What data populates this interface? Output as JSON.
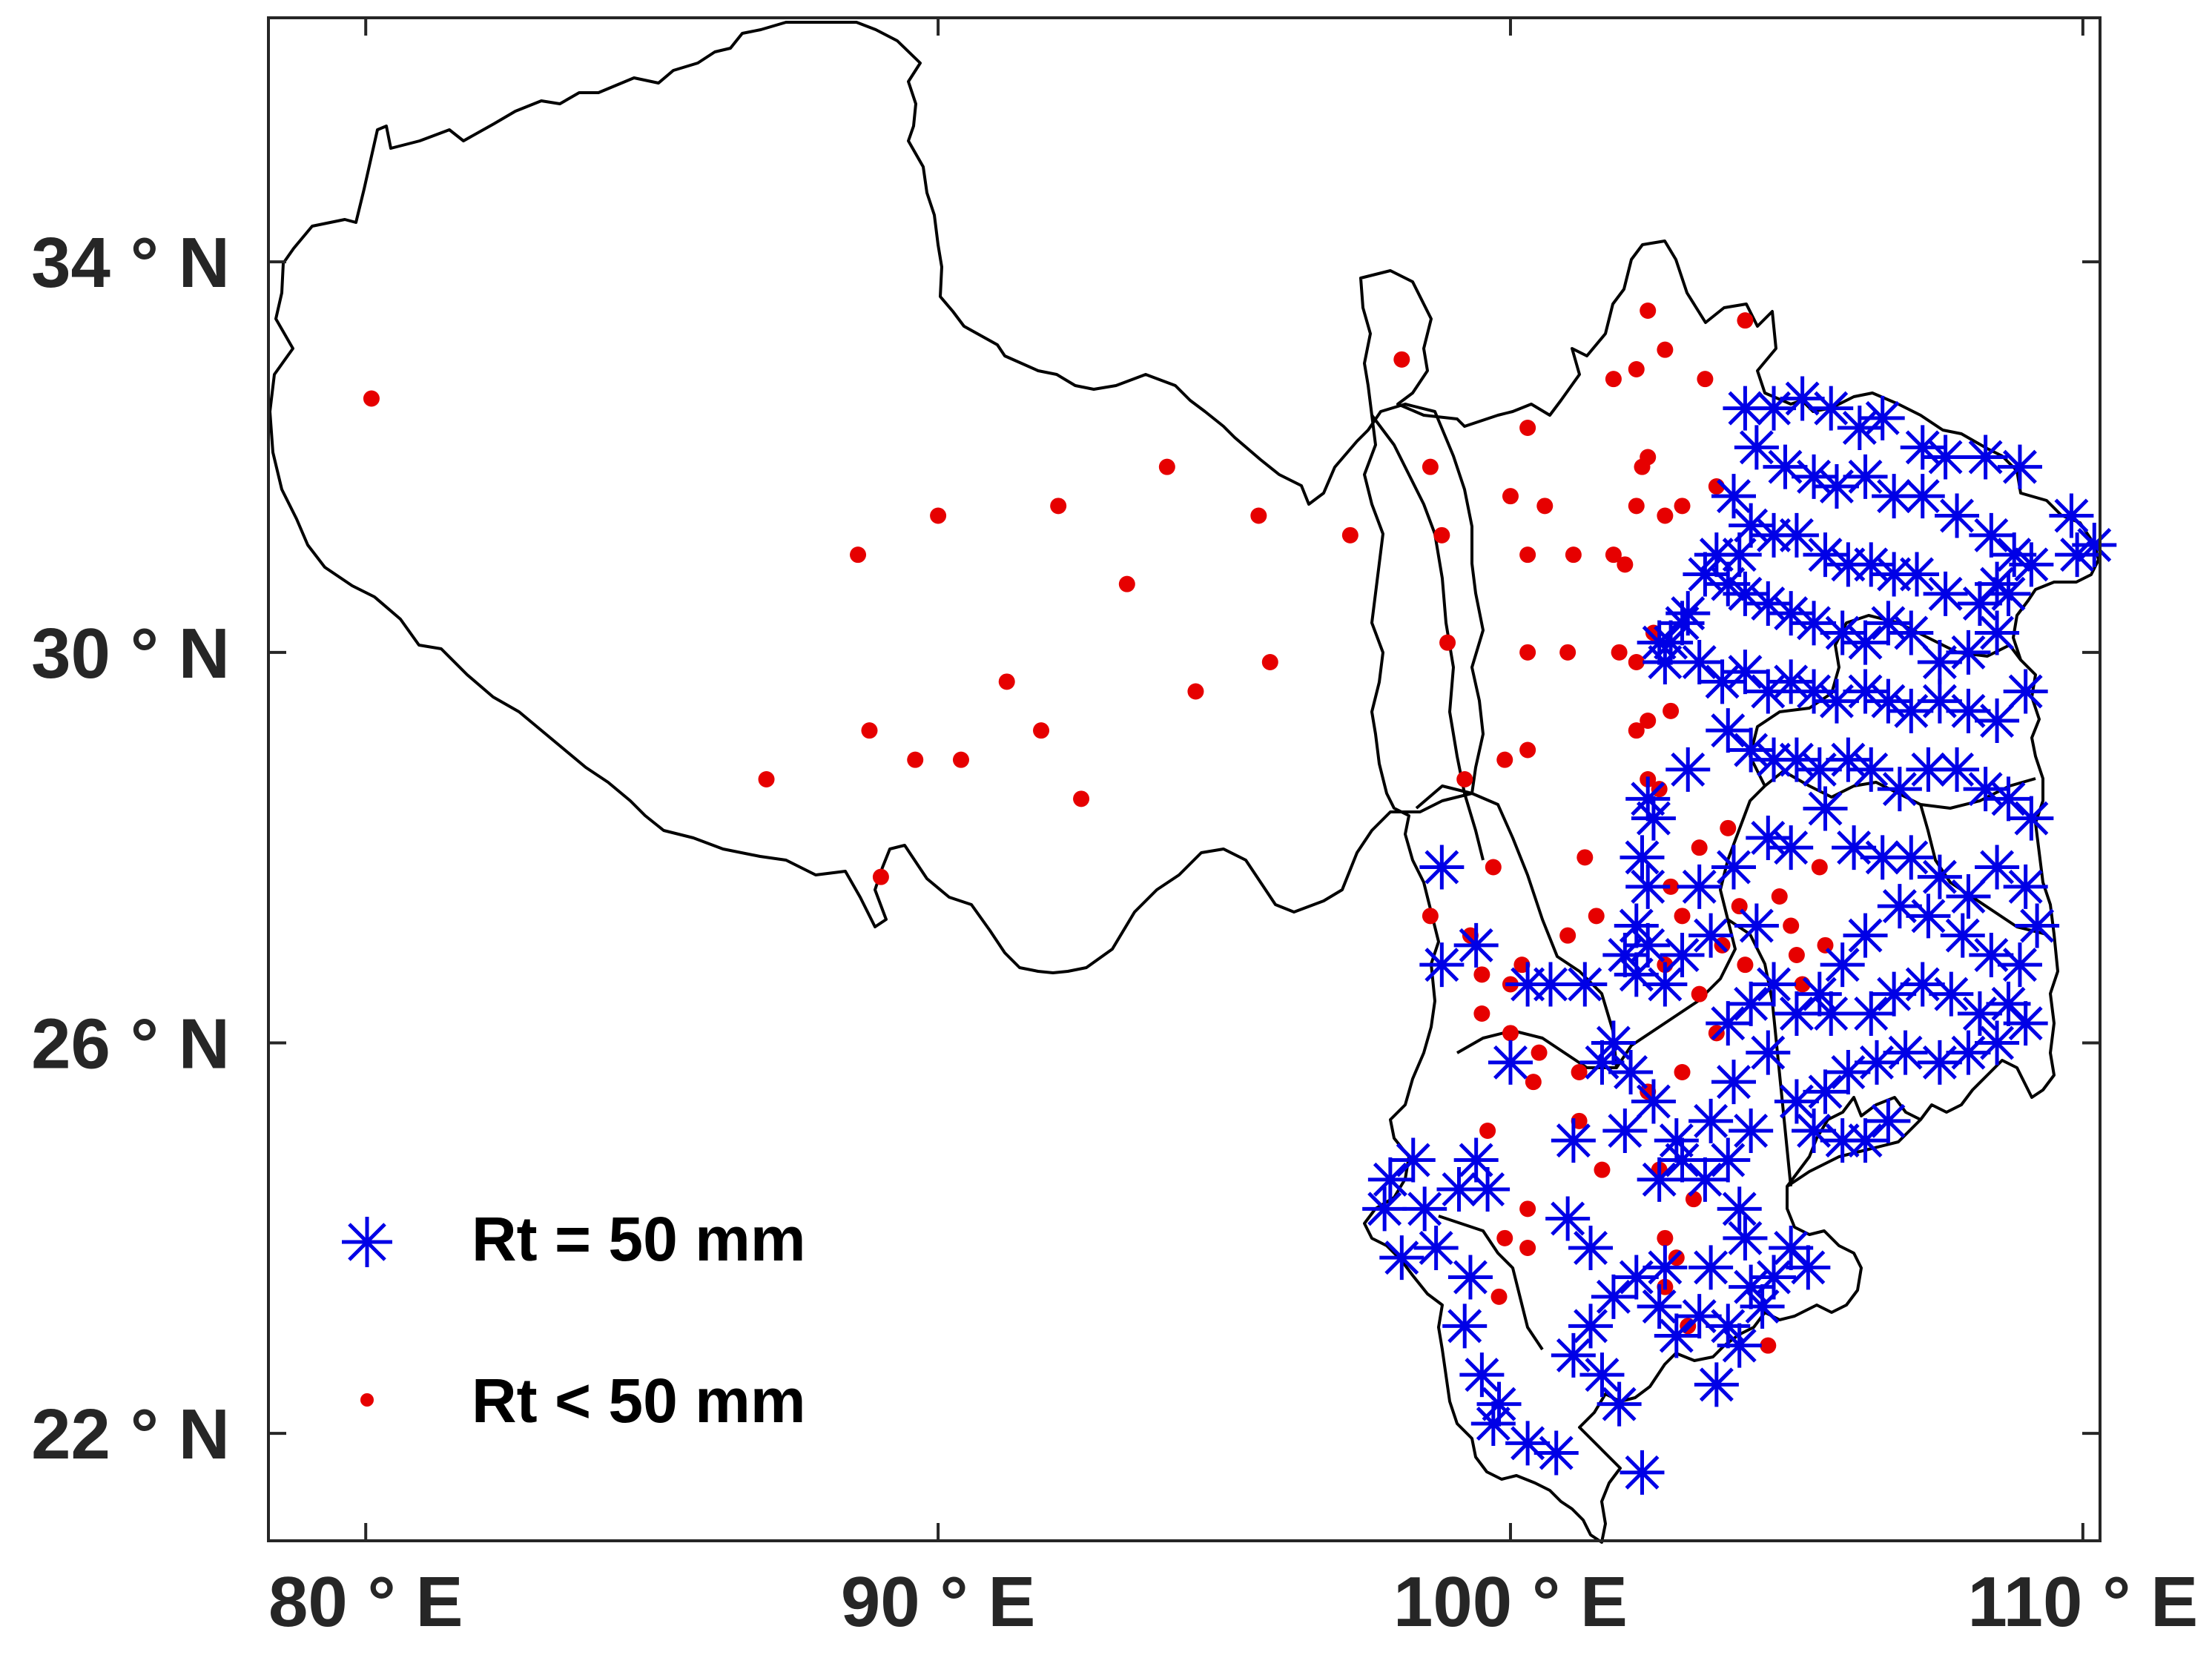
{
  "map": {
    "x_axis": {
      "range_deg_e": [
        78.3,
        110.3
      ],
      "ticks": [
        {
          "value": 80,
          "label": "80 ° E"
        },
        {
          "value": 90,
          "label": "90 ° E"
        },
        {
          "value": 100,
          "label": "100 ° E"
        },
        {
          "value": 110,
          "label": "110 ° E"
        }
      ]
    },
    "y_axis": {
      "range_deg_n": [
        20.9,
        36.5
      ],
      "ticks": [
        {
          "value": 22,
          "label": "22 ° N"
        },
        {
          "value": 26,
          "label": "26 ° N"
        },
        {
          "value": 30,
          "label": "30 ° N"
        },
        {
          "value": 34,
          "label": "34 ° N"
        }
      ]
    },
    "legend": {
      "placement": "lower-left",
      "items": [
        {
          "marker": "asterisk",
          "color": "#0000e6",
          "label": "Rt = 50 mm"
        },
        {
          "marker": "dot",
          "color": "#e60000",
          "label": "Rt < 50 mm"
        }
      ]
    },
    "colors": {
      "outline": "#000000",
      "asterisk": "#0000e6",
      "dot": "#e60000",
      "axis": "#262626"
    },
    "stations_lt50": [
      [
        80.1,
        32.6
      ],
      [
        88.6,
        31.0
      ],
      [
        90.0,
        31.4
      ],
      [
        92.1,
        31.5
      ],
      [
        94.0,
        31.9
      ],
      [
        95.6,
        31.4
      ],
      [
        97.2,
        31.2
      ],
      [
        93.3,
        30.7
      ],
      [
        95.8,
        29.9
      ],
      [
        94.5,
        29.6
      ],
      [
        91.2,
        29.7
      ],
      [
        91.8,
        29.2
      ],
      [
        88.8,
        29.2
      ],
      [
        89.6,
        28.9
      ],
      [
        90.4,
        28.9
      ],
      [
        92.5,
        28.5
      ],
      [
        87.0,
        28.7
      ],
      [
        89.0,
        27.7
      ],
      [
        98.1,
        33.0
      ],
      [
        98.6,
        31.9
      ],
      [
        98.8,
        31.2
      ],
      [
        98.9,
        30.1
      ],
      [
        99.2,
        28.7
      ],
      [
        99.7,
        27.8
      ],
      [
        99.3,
        27.1
      ],
      [
        99.5,
        26.7
      ],
      [
        99.5,
        26.3
      ],
      [
        98.6,
        27.3
      ],
      [
        100.0,
        31.6
      ],
      [
        100.3,
        31.0
      ],
      [
        100.3,
        30.0
      ],
      [
        100.3,
        29.0
      ],
      [
        99.9,
        28.9
      ],
      [
        100.3,
        32.3
      ],
      [
        100.6,
        31.5
      ],
      [
        101.1,
        31.0
      ],
      [
        101.0,
        30.0
      ],
      [
        101.3,
        27.9
      ],
      [
        101.5,
        27.3
      ],
      [
        101.0,
        27.1
      ],
      [
        100.0,
        26.6
      ],
      [
        100.2,
        26.8
      ],
      [
        100.5,
        25.9
      ],
      [
        100.4,
        25.6
      ],
      [
        101.2,
        25.7
      ],
      [
        101.6,
        24.7
      ],
      [
        100.3,
        24.3
      ],
      [
        99.9,
        24.0
      ],
      [
        100.3,
        23.9
      ],
      [
        99.8,
        23.4
      ],
      [
        99.6,
        25.1
      ],
      [
        100.0,
        26.1
      ],
      [
        101.2,
        25.2
      ],
      [
        101.8,
        32.8
      ],
      [
        102.2,
        32.9
      ],
      [
        102.4,
        33.5
      ],
      [
        102.7,
        33.1
      ],
      [
        103.4,
        32.8
      ],
      [
        104.1,
        33.4
      ],
      [
        102.3,
        31.9
      ],
      [
        102.2,
        31.5
      ],
      [
        101.8,
        31.0
      ],
      [
        102.0,
        30.9
      ],
      [
        102.4,
        32.0
      ],
      [
        102.7,
        31.4
      ],
      [
        103.0,
        31.5
      ],
      [
        103.6,
        31.7
      ],
      [
        102.5,
        30.2
      ],
      [
        102.2,
        29.9
      ],
      [
        101.9,
        30.0
      ],
      [
        102.2,
        29.2
      ],
      [
        102.4,
        29.3
      ],
      [
        102.8,
        29.4
      ],
      [
        102.4,
        28.7
      ],
      [
        102.6,
        28.6
      ],
      [
        103.3,
        28.0
      ],
      [
        102.8,
        27.6
      ],
      [
        103.0,
        27.3
      ],
      [
        103.7,
        27.0
      ],
      [
        102.7,
        26.8
      ],
      [
        103.3,
        26.5
      ],
      [
        103.6,
        26.1
      ],
      [
        103.0,
        25.7
      ],
      [
        102.4,
        25.5
      ],
      [
        102.6,
        24.7
      ],
      [
        103.2,
        24.4
      ],
      [
        102.7,
        24.0
      ],
      [
        102.9,
        23.8
      ],
      [
        102.7,
        23.5
      ],
      [
        103.1,
        23.1
      ],
      [
        104.5,
        22.9
      ],
      [
        104.7,
        27.5
      ],
      [
        104.9,
        27.2
      ],
      [
        105.0,
        26.9
      ],
      [
        105.5,
        27.0
      ],
      [
        105.1,
        26.6
      ],
      [
        105.4,
        27.8
      ],
      [
        104.1,
        26.8
      ],
      [
        104.0,
        27.4
      ],
      [
        103.8,
        28.2
      ]
    ],
    "stations_eq50": [
      [
        104.1,
        32.5
      ],
      [
        104.6,
        32.5
      ],
      [
        105.1,
        32.6
      ],
      [
        105.6,
        32.5
      ],
      [
        106.1,
        32.3
      ],
      [
        106.5,
        32.4
      ],
      [
        107.2,
        32.1
      ],
      [
        107.6,
        32.0
      ],
      [
        108.3,
        32.0
      ],
      [
        108.9,
        31.9
      ],
      [
        109.8,
        31.4
      ],
      [
        110.2,
        31.1
      ],
      [
        109.9,
        31.0
      ],
      [
        104.3,
        32.1
      ],
      [
        104.8,
        31.9
      ],
      [
        105.3,
        31.8
      ],
      [
        105.7,
        31.7
      ],
      [
        106.2,
        31.8
      ],
      [
        106.7,
        31.6
      ],
      [
        107.2,
        31.6
      ],
      [
        107.8,
        31.4
      ],
      [
        108.4,
        31.2
      ],
      [
        108.8,
        31.0
      ],
      [
        108.5,
        30.7
      ],
      [
        109.1,
        30.9
      ],
      [
        103.9,
        31.6
      ],
      [
        104.2,
        31.3
      ],
      [
        104.6,
        31.2
      ],
      [
        105.0,
        31.2
      ],
      [
        105.5,
        31.0
      ],
      [
        105.9,
        30.9
      ],
      [
        106.3,
        30.9
      ],
      [
        106.7,
        30.8
      ],
      [
        107.1,
        30.8
      ],
      [
        107.6,
        30.6
      ],
      [
        108.2,
        30.5
      ],
      [
        108.7,
        30.6
      ],
      [
        103.4,
        30.8
      ],
      [
        103.8,
        30.7
      ],
      [
        104.1,
        30.6
      ],
      [
        104.5,
        30.5
      ],
      [
        104.9,
        30.4
      ],
      [
        105.3,
        30.3
      ],
      [
        105.8,
        30.2
      ],
      [
        106.2,
        30.1
      ],
      [
        106.6,
        30.3
      ],
      [
        107.0,
        30.2
      ],
      [
        107.5,
        29.9
      ],
      [
        108.0,
        30.0
      ],
      [
        108.5,
        30.2
      ],
      [
        103.0,
        30.3
      ],
      [
        102.6,
        30.1
      ],
      [
        103.3,
        29.9
      ],
      [
        103.7,
        29.7
      ],
      [
        104.1,
        29.8
      ],
      [
        104.5,
        29.6
      ],
      [
        104.9,
        29.7
      ],
      [
        105.3,
        29.6
      ],
      [
        105.7,
        29.5
      ],
      [
        106.2,
        29.6
      ],
      [
        106.6,
        29.5
      ],
      [
        107.0,
        29.4
      ],
      [
        107.5,
        29.5
      ],
      [
        108.0,
        29.4
      ],
      [
        108.5,
        29.3
      ],
      [
        109.0,
        29.6
      ],
      [
        103.8,
        29.2
      ],
      [
        104.2,
        29.0
      ],
      [
        104.6,
        28.9
      ],
      [
        105.0,
        28.9
      ],
      [
        105.4,
        28.8
      ],
      [
        105.9,
        28.9
      ],
      [
        106.3,
        28.8
      ],
      [
        106.8,
        28.6
      ],
      [
        107.3,
        28.8
      ],
      [
        107.8,
        28.8
      ],
      [
        108.3,
        28.6
      ],
      [
        108.7,
        28.5
      ],
      [
        109.1,
        28.3
      ],
      [
        103.1,
        28.8
      ],
      [
        102.4,
        28.5
      ],
      [
        102.5,
        28.3
      ],
      [
        102.3,
        27.9
      ],
      [
        102.4,
        27.6
      ],
      [
        102.2,
        27.2
      ],
      [
        102.4,
        27.0
      ],
      [
        102.0,
        26.9
      ],
      [
        102.2,
        26.7
      ],
      [
        102.7,
        26.6
      ],
      [
        103.0,
        26.9
      ],
      [
        103.5,
        27.1
      ],
      [
        103.3,
        27.6
      ],
      [
        103.9,
        27.8
      ],
      [
        104.5,
        28.1
      ],
      [
        104.9,
        28.0
      ],
      [
        105.5,
        28.4
      ],
      [
        106.0,
        28.0
      ],
      [
        106.5,
        27.9
      ],
      [
        107.0,
        27.9
      ],
      [
        107.5,
        27.7
      ],
      [
        108.0,
        27.5
      ],
      [
        108.5,
        27.8
      ],
      [
        109.0,
        27.6
      ],
      [
        109.2,
        27.2
      ],
      [
        108.9,
        26.8
      ],
      [
        108.4,
        26.9
      ],
      [
        107.9,
        27.1
      ],
      [
        107.3,
        27.3
      ],
      [
        106.8,
        27.4
      ],
      [
        106.2,
        27.1
      ],
      [
        105.8,
        26.8
      ],
      [
        105.4,
        26.5
      ],
      [
        105.0,
        26.3
      ],
      [
        104.6,
        26.6
      ],
      [
        104.2,
        26.4
      ],
      [
        103.8,
        26.2
      ],
      [
        106.3,
        26.3
      ],
      [
        106.7,
        26.5
      ],
      [
        107.2,
        26.6
      ],
      [
        107.7,
        26.5
      ],
      [
        108.2,
        26.3
      ],
      [
        108.7,
        26.4
      ],
      [
        109.0,
        26.2
      ],
      [
        108.5,
        26.0
      ],
      [
        108.0,
        25.9
      ],
      [
        107.5,
        25.8
      ],
      [
        106.9,
        25.9
      ],
      [
        106.4,
        25.8
      ],
      [
        105.9,
        25.7
      ],
      [
        105.5,
        25.5
      ],
      [
        105.0,
        25.4
      ],
      [
        105.3,
        25.1
      ],
      [
        105.8,
        25.0
      ],
      [
        106.2,
        25.0
      ],
      [
        106.6,
        25.2
      ],
      [
        104.5,
        25.9
      ],
      [
        103.9,
        25.6
      ],
      [
        103.5,
        25.2
      ],
      [
        102.9,
        25.0
      ],
      [
        102.5,
        25.4
      ],
      [
        102.1,
        25.7
      ],
      [
        101.8,
        26.0
      ],
      [
        102.0,
        25.1
      ],
      [
        102.6,
        24.6
      ],
      [
        103.0,
        24.8
      ],
      [
        103.4,
        24.6
      ],
      [
        103.8,
        24.8
      ],
      [
        104.2,
        25.1
      ],
      [
        104.0,
        24.3
      ],
      [
        101.6,
        25.8
      ],
      [
        101.1,
        25.0
      ],
      [
        100.7,
        26.6
      ],
      [
        101.3,
        26.6
      ],
      [
        100.3,
        26.6
      ],
      [
        100.0,
        25.8
      ],
      [
        99.4,
        27.0
      ],
      [
        98.8,
        27.8
      ],
      [
        98.8,
        26.8
      ],
      [
        97.9,
        24.6
      ],
      [
        98.3,
        24.8
      ],
      [
        98.5,
        24.3
      ],
      [
        97.8,
        24.3
      ],
      [
        98.1,
        23.8
      ],
      [
        98.7,
        23.9
      ],
      [
        99.1,
        24.5
      ],
      [
        99.4,
        24.8
      ],
      [
        99.6,
        24.5
      ],
      [
        101.0,
        24.2
      ],
      [
        101.4,
        23.9
      ],
      [
        99.3,
        23.6
      ],
      [
        99.2,
        23.1
      ],
      [
        99.5,
        22.6
      ],
      [
        99.8,
        22.3
      ],
      [
        99.7,
        22.1
      ],
      [
        100.3,
        21.9
      ],
      [
        100.8,
        21.8
      ],
      [
        101.1,
        22.8
      ],
      [
        101.4,
        23.1
      ],
      [
        101.8,
        23.4
      ],
      [
        101.6,
        22.6
      ],
      [
        101.9,
        22.3
      ],
      [
        102.3,
        21.6
      ],
      [
        102.2,
        23.6
      ],
      [
        102.6,
        23.3
      ],
      [
        102.9,
        23.0
      ],
      [
        103.3,
        23.2
      ],
      [
        103.8,
        23.1
      ],
      [
        104.2,
        23.5
      ],
      [
        104.6,
        23.6
      ],
      [
        104.9,
        23.9
      ],
      [
        103.6,
        22.5
      ],
      [
        104.0,
        22.9
      ],
      [
        104.4,
        23.3
      ],
      [
        105.2,
        23.7
      ],
      [
        104.1,
        24.0
      ],
      [
        103.5,
        23.7
      ],
      [
        102.7,
        23.7
      ],
      [
        105.6,
        26.3
      ],
      [
        104.3,
        27.2
      ],
      [
        102.7,
        29.9
      ],
      [
        102.8,
        30.1
      ],
      [
        103.1,
        30.4
      ],
      [
        103.6,
        31.0
      ],
      [
        104.0,
        31.0
      ]
    ]
  }
}
